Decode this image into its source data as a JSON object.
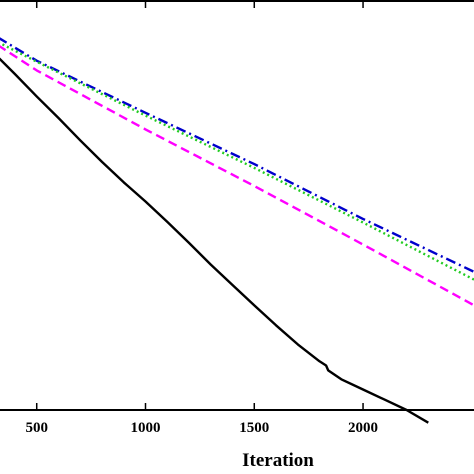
{
  "chart_data": {
    "type": "line",
    "xlabel": "Iteration",
    "ylabel": "",
    "title": "",
    "xlim": [
      322,
      2510
    ],
    "ylim": [
      0,
      1
    ],
    "xticks": [
      500,
      1000,
      1500,
      2000
    ],
    "grid": false,
    "legend": "none",
    "series": [
      {
        "color": "#000000",
        "dash": "solid",
        "x": [
          322,
          400,
          500,
          600,
          700,
          800,
          900,
          1000,
          1100,
          1200,
          1300,
          1400,
          1500,
          1600,
          1700,
          1800,
          1830,
          1840,
          1900,
          2000,
          2100,
          2200,
          2300
        ],
        "y": [
          0.8604,
          0.8193,
          0.765,
          0.7122,
          0.6579,
          0.6051,
          0.5553,
          0.5085,
          0.4588,
          0.4075,
          0.3547,
          0.3048,
          0.255,
          0.2067,
          0.1599,
          0.1189,
          0.1085,
          0.0965,
          0.075,
          0.0501,
          0.0251,
          0.0,
          -0.031
        ]
      },
      {
        "color": "#0000cc",
        "dash": "dashdot",
        "x": [
          322,
          500,
          1000,
          1500,
          2000,
          2510
        ],
        "y": [
          0.9086,
          0.852,
          0.725,
          0.5998,
          0.4662,
          0.337
        ]
      },
      {
        "color": "#22cc22",
        "dash": "dotted",
        "x": [
          322,
          500,
          1000,
          1500,
          2000,
          2510
        ],
        "y": [
          0.8974,
          0.8494,
          0.718,
          0.5906,
          0.4574,
          0.3181
        ]
      },
      {
        "color": "#ff00ff",
        "dash": "dashed",
        "x": [
          322,
          500,
          1000,
          1500,
          2000,
          2510
        ],
        "y": [
          0.8897,
          0.8284,
          0.6843,
          0.5464,
          0.4036,
          0.2553
        ]
      }
    ]
  }
}
